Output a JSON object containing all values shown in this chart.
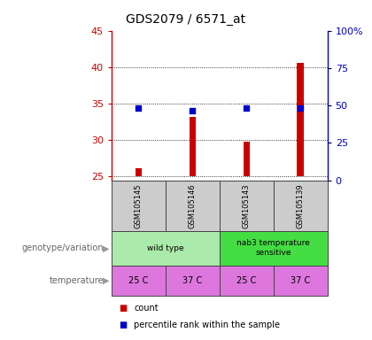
{
  "title": "GDS2079 / 6571_at",
  "samples": [
    "GSM105145",
    "GSM105146",
    "GSM105143",
    "GSM105139"
  ],
  "counts": [
    26.2,
    33.2,
    29.8,
    40.6
  ],
  "percentiles": [
    48.0,
    46.5,
    48.5,
    48.0
  ],
  "ylim_left": [
    24.5,
    45
  ],
  "ylim_right": [
    0,
    100
  ],
  "yticks_left": [
    25,
    30,
    35,
    40,
    45
  ],
  "yticks_right": [
    0,
    25,
    50,
    75,
    100
  ],
  "bar_color": "#cc0000",
  "dot_color": "#0000cc",
  "bar_bottom": 25,
  "genotype_groups": [
    {
      "label": "wild type",
      "start": 0,
      "end": 2,
      "color": "#aaeaaa"
    },
    {
      "label": "nab3 temperature\nsensitive",
      "start": 2,
      "end": 4,
      "color": "#44dd44"
    }
  ],
  "temperatures": [
    "25 C",
    "37 C",
    "25 C",
    "37 C"
  ],
  "temp_color": "#dd77dd",
  "sample_bg": "#cccccc",
  "legend_items": [
    {
      "label": "count",
      "color": "#cc0000"
    },
    {
      "label": "percentile rank within the sample",
      "color": "#0000cc"
    }
  ],
  "genotype_label": "genotype/variation",
  "temperature_label": "temperature"
}
